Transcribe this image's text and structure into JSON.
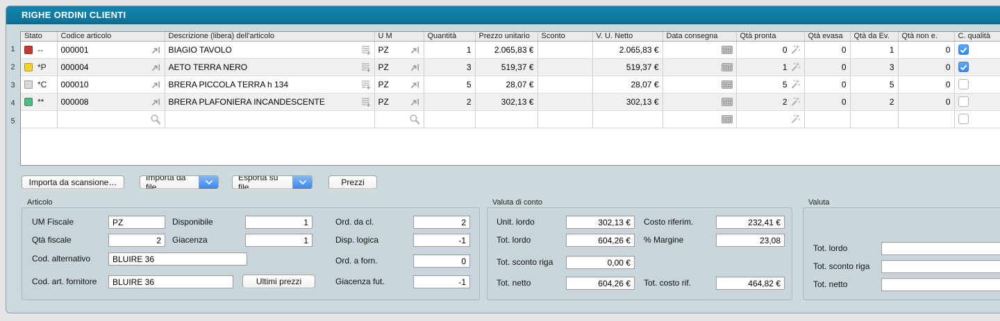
{
  "window": {
    "title": "RIGHE ORDINI CLIENTI"
  },
  "table": {
    "columns": {
      "stato": "Stato",
      "codice": "Codice articolo",
      "descrizione": "Descrizione (libera) dell'articolo",
      "um": "U M",
      "quantita": "Quantità",
      "prezzo": "Prezzo unitario",
      "sconto": "Sconto",
      "netto": "V. U. Netto",
      "consegna": "Data consegna",
      "pronta": "Qtà pronta",
      "evasa": "Qtà evasa",
      "da_ev": "Qtà da Ev.",
      "non_e": "Qtà non e.",
      "qualita": "C. qualità"
    },
    "rows": [
      {
        "num": "1",
        "stato_color": "#c23b2e",
        "stato": "--",
        "codice": "000001",
        "descrizione": "BIAGIO TAVOLO",
        "um": "PZ",
        "quantita": "1",
        "prezzo": "2.065,83 €",
        "sconto": "",
        "netto": "2.065,83 €",
        "consegna": "",
        "pronta": "0",
        "evasa": "0",
        "da_ev": "1",
        "non_e": "0",
        "qualita": true
      },
      {
        "num": "2",
        "stato_color": "#f6d12f",
        "stato": "*P",
        "codice": "000004",
        "descrizione": "AETO TERRA NERO",
        "um": "PZ",
        "quantita": "3",
        "prezzo": "519,37 €",
        "sconto": "",
        "netto": "519,37 €",
        "consegna": "",
        "pronta": "1",
        "evasa": "0",
        "da_ev": "3",
        "non_e": "0",
        "qualita": true
      },
      {
        "num": "3",
        "stato_color": "#d9d9d9",
        "stato": "*C",
        "codice": "000010",
        "descrizione": "BRERA PICCOLA TERRA h 134",
        "um": "PZ",
        "quantita": "5",
        "prezzo": "28,07 €",
        "sconto": "",
        "netto": "28,07 €",
        "consegna": "",
        "pronta": "5",
        "evasa": "0",
        "da_ev": "5",
        "non_e": "0",
        "qualita": false
      },
      {
        "num": "4",
        "stato_color": "#4fbe83",
        "stato": "**",
        "codice": "000008",
        "descrizione": "BRERA PLAFONIERA INCANDESCENTE",
        "um": "PZ",
        "quantita": "2",
        "prezzo": "302,13 €",
        "sconto": "",
        "netto": "302,13 €",
        "consegna": "",
        "pronta": "2",
        "evasa": "0",
        "da_ev": "2",
        "non_e": "0",
        "qualita": false
      }
    ],
    "empty_row": {
      "num": "5"
    }
  },
  "toolbar": {
    "importa_scansione": "Importa da scansione…",
    "importa_file": "Importa da file",
    "esporta_file": "Esporta su file",
    "prezzi": "Prezzi"
  },
  "articolo": {
    "label": "Articolo",
    "um_fiscale": {
      "label": "UM Fiscale",
      "value": "PZ"
    },
    "qta_fiscale": {
      "label": "Qtà fiscale",
      "value": "2"
    },
    "cod_alternativo": {
      "label": "Cod. alternativo",
      "value": "BLUIRE 36"
    },
    "cod_art_fornitore": {
      "label": "Cod. art. fornitore",
      "value": "BLUIRE 36"
    },
    "disponibile": {
      "label": "Disponibile",
      "value": "1"
    },
    "giacenza": {
      "label": "Giacenza",
      "value": "1"
    },
    "ultimi_prezzi_btn": "Ultimi prezzi",
    "ord_da_cl": {
      "label": "Ord. da cl.",
      "value": "2"
    },
    "disp_logica": {
      "label": "Disp. logica",
      "value": "-1"
    },
    "ord_a_forn": {
      "label": "Ord. a forn.",
      "value": "0"
    },
    "giacenza_fut": {
      "label": "Giacenza fut.",
      "value": "-1"
    }
  },
  "valuta_conto": {
    "label": "Valuta di conto",
    "unit_lordo": {
      "label": "Unit. lordo",
      "value": "302,13 €"
    },
    "tot_lordo": {
      "label": "Tot. lordo",
      "value": "604,26 €"
    },
    "tot_sconto_riga": {
      "label": "Tot. sconto riga",
      "value": "0,00 €"
    },
    "tot_netto": {
      "label": "Tot. netto",
      "value": "604,26 €"
    },
    "costo_riferim": {
      "label": "Costo riferim.",
      "value": "232,41 €"
    },
    "margine": {
      "label": "% Margine",
      "value": "23,08"
    },
    "tot_costo_rif": {
      "label": "Tot. costo rif.",
      "value": "464,82 €"
    }
  },
  "valuta": {
    "label": "Valuta",
    "tot_lordo": {
      "label": "Tot. lordo",
      "value": ""
    },
    "tot_sconto_riga": {
      "label": "Tot. sconto riga",
      "value": ""
    },
    "tot_netto": {
      "label": "Tot. netto",
      "value": ""
    }
  },
  "colors": {
    "titlebar": "#117a9f",
    "window_bg": "#ccd9dd",
    "checkbox_checked": "#4a9cf8",
    "status_red": "#c23b2e",
    "status_yellow": "#f6d12f",
    "status_gray": "#d9d9d9",
    "status_green": "#4fbe83"
  },
  "icons": {
    "goto": "goto-link-arrow",
    "textlines": "description-lines-plus",
    "calendar": "calendar-picker",
    "wand": "magic-wand",
    "magnifier": "search-lookup",
    "chevron": "chevron-down"
  }
}
